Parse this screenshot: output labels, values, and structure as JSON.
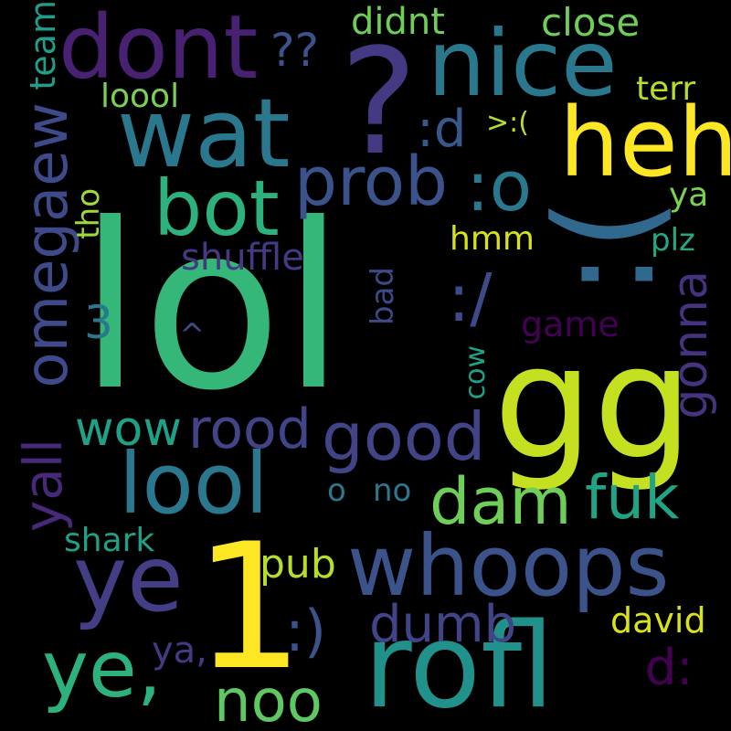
{
  "words": [
    {
      "text": "lol",
      "color": "#35b779"
    },
    {
      "text": "gg",
      "color": "#c5e021"
    },
    {
      "text": "1",
      "color": "#fde725"
    },
    {
      "text": "?",
      "color": "#443983"
    },
    {
      "text": ":(",
      "color": "#31688e"
    },
    {
      "text": "rofl",
      "color": "#21918c"
    },
    {
      "text": "heh",
      "color": "#fde725"
    },
    {
      "text": "nice",
      "color": "#2a788e"
    },
    {
      "text": "wat",
      "color": "#2a788e"
    },
    {
      "text": "dont",
      "color": "#482173"
    },
    {
      "text": "whoops",
      "color": "#3b528b"
    },
    {
      "text": "ye",
      "color": "#433e85"
    },
    {
      "text": "ye,",
      "color": "#2db27d"
    },
    {
      "text": "lool",
      "color": "#2a788e"
    },
    {
      "text": "bot",
      "color": "#2db27d"
    },
    {
      "text": "prob",
      "color": "#3b528b"
    },
    {
      "text": ":o",
      "color": "#2a788e"
    },
    {
      "text": "dam",
      "color": "#6ece58"
    },
    {
      "text": "good",
      "color": "#414487"
    },
    {
      "text": "omegaew",
      "color": "#3e4a89"
    },
    {
      "text": "noo",
      "color": "#5ec962"
    },
    {
      "text": "rood",
      "color": "#414487"
    },
    {
      "text": "wow",
      "color": "#1fa187"
    },
    {
      "text": "fuk",
      "color": "#20a486"
    },
    {
      "text": "dumb",
      "color": "#414487"
    },
    {
      "text": "yall",
      "color": "#482878"
    },
    {
      "text": "gonna",
      "color": "#46337f"
    },
    {
      "text": ":/",
      "color": "#3e4989"
    },
    {
      "text": ":)",
      "color": "#3b528b"
    },
    {
      "text": "d:",
      "color": "#440154"
    },
    {
      "text": ":d",
      "color": "#38588c"
    },
    {
      "text": "didnt",
      "color": "#6ece58"
    },
    {
      "text": "close",
      "color": "#6ece58"
    },
    {
      "text": "??",
      "color": "#3b528b"
    },
    {
      "text": "team",
      "color": "#1f9e89"
    },
    {
      "text": "loool",
      "color": "#7ad151"
    },
    {
      "text": "terr",
      "color": "#b5de2b"
    },
    {
      "text": ">:(",
      "color": "#b5de2b"
    },
    {
      "text": "3",
      "color": "#2a788e"
    },
    {
      "text": "shuffle",
      "color": "#443983"
    },
    {
      "text": "tho",
      "color": "#a0da39"
    },
    {
      "text": "hmm",
      "color": "#d8e219"
    },
    {
      "text": "ya",
      "color": "#7ad151"
    },
    {
      "text": "plz",
      "color": "#22a884"
    },
    {
      "text": "game",
      "color": "#440154"
    },
    {
      "text": "bad",
      "color": "#3e4989"
    },
    {
      "text": "^",
      "color": "#3e4989"
    },
    {
      "text": "cow",
      "color": "#1fa187"
    },
    {
      "text": "o",
      "color": "#2a788e"
    },
    {
      "text": "no",
      "color": "#2a788e"
    },
    {
      "text": "shark",
      "color": "#1fa187"
    },
    {
      "text": "pub",
      "color": "#b5de2b"
    },
    {
      "text": "david",
      "color": "#d8e219"
    },
    {
      "text": "ya,",
      "color": "#443983"
    }
  ]
}
